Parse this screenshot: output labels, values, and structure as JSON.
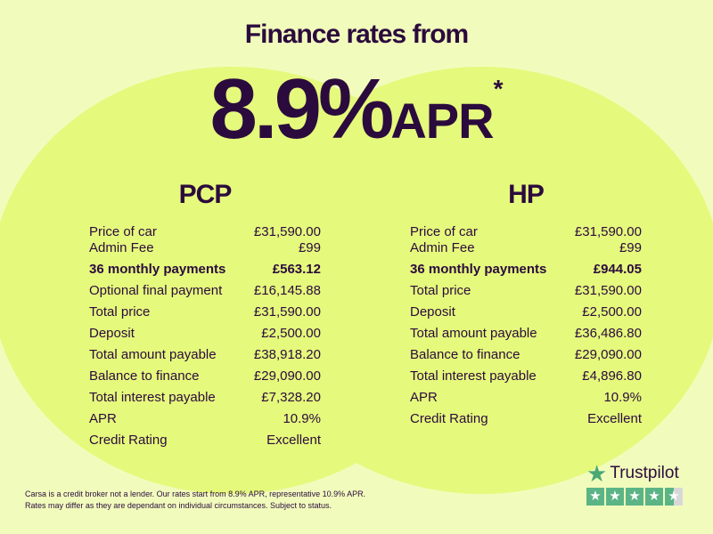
{
  "header": {
    "title": "Finance rates from",
    "rate": "8.9%",
    "rate_suffix": "APR",
    "asterisk": "*"
  },
  "pcp": {
    "title": "PCP",
    "rows": [
      {
        "label": "Price of car",
        "value": "£31,590.00"
      },
      {
        "label": "Admin Fee",
        "value": "£99"
      },
      {
        "label": "36 monthly payments",
        "value": "£563.12"
      },
      {
        "label": "Optional final payment",
        "value": "£16,145.88"
      },
      {
        "label": "Total price",
        "value": "£31,590.00"
      },
      {
        "label": "Deposit",
        "value": "£2,500.00"
      },
      {
        "label": "Total amount payable",
        "value": "£38,918.20"
      },
      {
        "label": "Balance to finance",
        "value": "£29,090.00"
      },
      {
        "label": "Total interest payable",
        "value": "£7,328.20"
      },
      {
        "label": "APR",
        "value": "10.9%"
      },
      {
        "label": "Credit Rating",
        "value": "Excellent"
      }
    ]
  },
  "hp": {
    "title": "HP",
    "rows": [
      {
        "label": "Price of car",
        "value": "£31,590.00"
      },
      {
        "label": "Admin Fee",
        "value": "£99"
      },
      {
        "label": "36 monthly payments",
        "value": "£944.05"
      },
      {
        "label": "Total price",
        "value": "£31,590.00"
      },
      {
        "label": "Deposit",
        "value": "£2,500.00"
      },
      {
        "label": "Total amount payable",
        "value": "£36,486.80"
      },
      {
        "label": "Balance to finance",
        "value": "£29,090.00"
      },
      {
        "label": "Total interest payable",
        "value": "£4,896.80"
      },
      {
        "label": "APR",
        "value": "10.9%"
      },
      {
        "label": "Credit Rating",
        "value": "Excellent"
      }
    ]
  },
  "disclaimer": {
    "line1": "Carsa is a credit broker not a lender. Our rates start from 8.9% APR, representative 10.9% APR.",
    "line2": "Rates may differ as they are dependant on individual circumstances. Subject to status."
  },
  "trustpilot": {
    "name": "Trustpilot",
    "rating_stars": 4.5,
    "max_stars": 5,
    "icon": "star-icon"
  },
  "colors": {
    "background": "#f1fcbc",
    "circle": "#e5f97c",
    "text": "#2b0b3d",
    "trustpilot_green": "#5bb486"
  }
}
